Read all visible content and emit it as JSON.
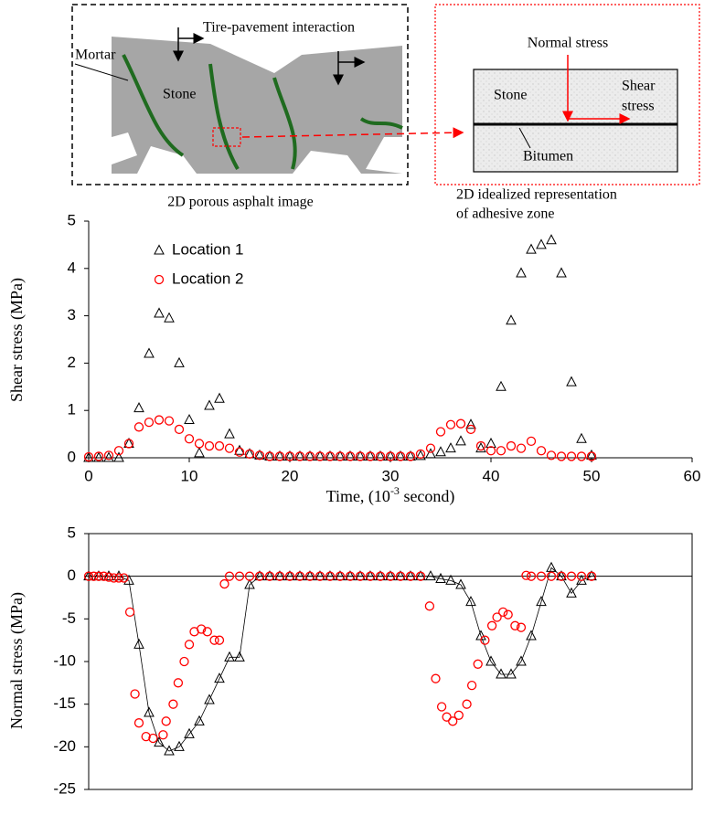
{
  "diagram": {
    "porous_image": {
      "interaction_label": "Tire-pavement interaction",
      "mortar_label": "Mortar",
      "stone_label": "Stone",
      "caption": "2D porous asphalt image"
    },
    "idealized": {
      "normal_label": "Normal stress",
      "stone_label": "Stone",
      "shear_label": [
        "Shear",
        "stress"
      ],
      "bitumen_label": "Bitumen",
      "caption": [
        "2D idealized representation",
        "of adhesive zone"
      ]
    }
  },
  "chart_data": [
    {
      "type": "scatter",
      "y_label": "Shear stress (MPa)",
      "x_label": [
        "Time, (10",
        "-3",
        " second)"
      ],
      "x": [
        0,
        1,
        2,
        3,
        4,
        5,
        6,
        7,
        8,
        9,
        10,
        11,
        12,
        13,
        14,
        15,
        16,
        17,
        18,
        19,
        20,
        21,
        22,
        23,
        24,
        25,
        26,
        27,
        28,
        29,
        30,
        31,
        32,
        33,
        34,
        35,
        36,
        37,
        38,
        39,
        40,
        41,
        42,
        43,
        44,
        45,
        46,
        47,
        48,
        49,
        50
      ],
      "series": [
        {
          "name": "Location 1",
          "color": "#000000",
          "marker": "triangle",
          "values": [
            0,
            0,
            0,
            0,
            0.3,
            1.05,
            2.2,
            3.05,
            2.95,
            2.0,
            0.8,
            0.1,
            1.1,
            1.25,
            0.5,
            0.15,
            0.08,
            0.05,
            0.03,
            0.03,
            0.03,
            0.03,
            0.03,
            0.03,
            0.03,
            0.03,
            0.03,
            0.03,
            0.03,
            0.03,
            0.03,
            0.03,
            0.03,
            0.04,
            0.08,
            0.12,
            0.2,
            0.35,
            0.7,
            0.2,
            0.3,
            1.5,
            2.9,
            3.9,
            4.4,
            4.5,
            4.6,
            3.9,
            1.6,
            0.4,
            0.05
          ]
        },
        {
          "name": "Location 2",
          "color": "#ff0000",
          "marker": "circle",
          "values": [
            0.02,
            0.03,
            0.05,
            0.15,
            0.3,
            0.65,
            0.75,
            0.8,
            0.78,
            0.6,
            0.4,
            0.3,
            0.25,
            0.25,
            0.2,
            0.12,
            0.08,
            0.05,
            0.03,
            0.03,
            0.03,
            0.03,
            0.03,
            0.03,
            0.03,
            0.03,
            0.03,
            0.03,
            0.03,
            0.03,
            0.03,
            0.03,
            0.03,
            0.08,
            0.2,
            0.55,
            0.7,
            0.72,
            0.6,
            0.25,
            0.15,
            0.15,
            0.25,
            0.2,
            0.35,
            0.15,
            0.05,
            0.03,
            0.03,
            0.03,
            0.03
          ]
        }
      ],
      "xlim": [
        0,
        60
      ],
      "xticks": [
        0,
        10,
        20,
        30,
        40,
        50,
        60
      ],
      "ylim": [
        0,
        5
      ],
      "yticks": [
        0,
        1,
        2,
        3,
        4,
        5
      ],
      "legend": "upper left",
      "frame": false
    },
    {
      "type": "scatter",
      "y_label": "Normal stress (MPa)",
      "x": [
        0,
        1,
        2,
        3,
        4,
        5,
        6,
        7,
        8,
        9,
        10,
        11,
        12,
        13,
        14,
        15,
        16,
        17,
        18,
        19,
        20,
        21,
        22,
        23,
        24,
        25,
        26,
        27,
        28,
        29,
        30,
        31,
        32,
        33,
        34,
        35,
        36,
        37,
        38,
        39,
        40,
        41,
        42,
        43,
        44,
        45,
        46,
        47,
        48,
        49,
        50
      ],
      "series": [
        {
          "color": "#000000",
          "marker": "triangle",
          "line": true,
          "values": [
            0,
            0,
            0,
            0,
            -0.5,
            -8,
            -16,
            -19.5,
            -20.5,
            -20,
            -18.5,
            -17,
            -14.5,
            -12,
            -9.5,
            -9.5,
            -1,
            0,
            0,
            0,
            0,
            0,
            0,
            0,
            0,
            0,
            0,
            0,
            0,
            0,
            0,
            0,
            0,
            0,
            0,
            -0.3,
            -0.5,
            -1,
            -3,
            -7,
            -10,
            -11.5,
            -11.5,
            -10,
            -7,
            -3,
            1,
            0,
            -2,
            -0.5,
            0
          ]
        },
        {
          "color": "#ff0000",
          "marker": "circle",
          "x": [
            0,
            0.5,
            1,
            1.5,
            2,
            2.5,
            3,
            3.5,
            4.1,
            4.6,
            5,
            5.7,
            6.4,
            7.4,
            7.7,
            8.4,
            8.9,
            9.5,
            10,
            10.5,
            11.2,
            11.8,
            12.5,
            13,
            13.5,
            14,
            15,
            16,
            17,
            18,
            19,
            20,
            21,
            22,
            23,
            24,
            25,
            26,
            27,
            28,
            29,
            30,
            31,
            32,
            33,
            33.9,
            34.5,
            35.1,
            35.6,
            36.2,
            36.8,
            37.6,
            38.1,
            38.7,
            39.4,
            40.1,
            40.6,
            41.2,
            41.7,
            42.4,
            43,
            43.5,
            44,
            45,
            46,
            47,
            48,
            49,
            50
          ],
          "values": [
            0,
            0,
            0,
            0,
            -0.1,
            -0.2,
            -0.2,
            -0.2,
            -4.2,
            -13.8,
            -17.2,
            -18.8,
            -19,
            -18.6,
            -17,
            -15,
            -12.5,
            -10,
            -8,
            -6.5,
            -6.2,
            -6.5,
            -7.5,
            -7.5,
            -0.9,
            0,
            0,
            0,
            0,
            0,
            0,
            0,
            0,
            0,
            0,
            0,
            0,
            0,
            0,
            0,
            0,
            0,
            0,
            0,
            0,
            -3.5,
            -12,
            -15.3,
            -16.5,
            -17,
            -16.3,
            -15,
            -12.8,
            -10.3,
            -7.5,
            -5.8,
            -4.8,
            -4.2,
            -4.5,
            -5.8,
            -6,
            0.1,
            0,
            0,
            0,
            0,
            0,
            0,
            0
          ]
        }
      ],
      "xlim": [
        0,
        60
      ],
      "ylim": [
        -25,
        5
      ],
      "yticks": [
        -25,
        -20,
        -15,
        -10,
        -5,
        0,
        5
      ],
      "frame": true
    }
  ]
}
